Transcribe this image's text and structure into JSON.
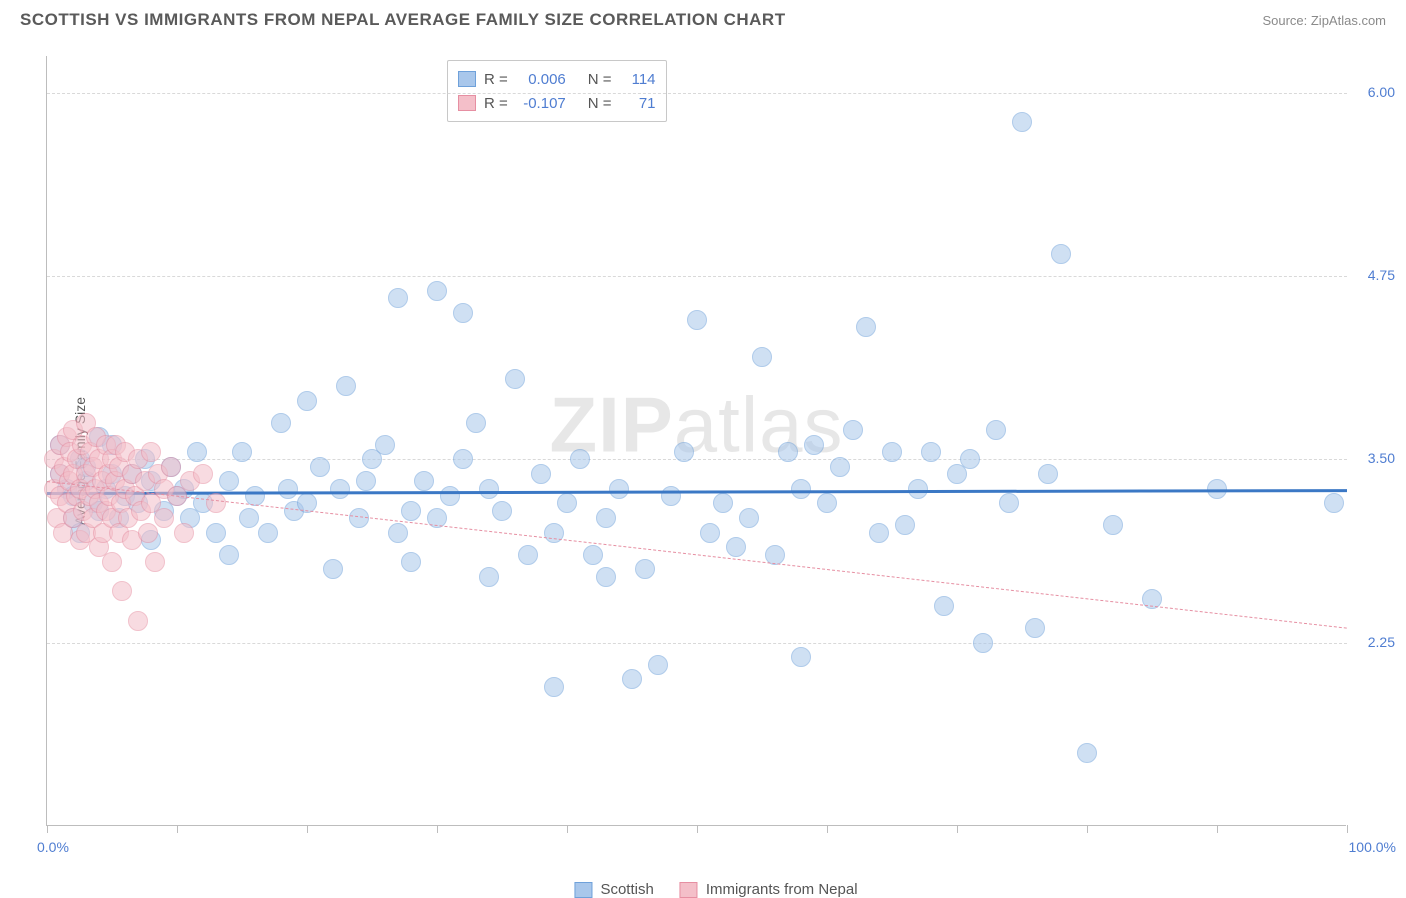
{
  "title": "SCOTTISH VS IMMIGRANTS FROM NEPAL AVERAGE FAMILY SIZE CORRELATION CHART",
  "source": "Source: ZipAtlas.com",
  "watermark_bold": "ZIP",
  "watermark_light": "atlas",
  "yaxis_title": "Average Family Size",
  "chart": {
    "type": "scatter",
    "background_color": "#ffffff",
    "grid_color": "#d9d9d9",
    "axis_color": "#bdbdbd",
    "xlim": [
      0,
      100
    ],
    "ylim": [
      1.0,
      6.25
    ],
    "xlabel_min": "0.0%",
    "xlabel_max": "100.0%",
    "yticks": [
      2.25,
      3.5,
      4.75,
      6.0
    ],
    "ytick_labels": [
      "2.25",
      "3.50",
      "4.75",
      "6.00"
    ],
    "xtick_positions": [
      0,
      10,
      20,
      30,
      40,
      50,
      60,
      70,
      80,
      90,
      100
    ],
    "marker_radius": 10,
    "marker_opacity": 0.55,
    "label_color": "#4f7dd1",
    "text_color": "#555555"
  },
  "series": [
    {
      "name": "Scottish",
      "fill": "#a9c7eb",
      "stroke": "#6fa1da",
      "reg_color": "#3b78c5",
      "reg_width": 3,
      "reg_dash": "solid",
      "R": "0.006",
      "N": "114",
      "reg_start_y": 3.28,
      "reg_end_y": 3.3,
      "reg_start_x": 0,
      "reg_end_x": 100,
      "points": [
        [
          1,
          3.4
        ],
        [
          1,
          3.6
        ],
        [
          1.5,
          3.3
        ],
        [
          2,
          3.1
        ],
        [
          2,
          3.25
        ],
        [
          2.5,
          3.5
        ],
        [
          2.5,
          3.0
        ],
        [
          3,
          3.35
        ],
        [
          3,
          3.45
        ],
        [
          3.5,
          3.2
        ],
        [
          4,
          3.65
        ],
        [
          4,
          3.15
        ],
        [
          4.5,
          3.3
        ],
        [
          5,
          3.4
        ],
        [
          5,
          3.6
        ],
        [
          5.5,
          3.1
        ],
        [
          6,
          3.25
        ],
        [
          6.5,
          3.4
        ],
        [
          7,
          3.2
        ],
        [
          7.5,
          3.5
        ],
        [
          8,
          2.95
        ],
        [
          8,
          3.35
        ],
        [
          9,
          3.15
        ],
        [
          9.5,
          3.45
        ],
        [
          10,
          3.25
        ],
        [
          10.5,
          3.3
        ],
        [
          11,
          3.1
        ],
        [
          11.5,
          3.55
        ],
        [
          12,
          3.2
        ],
        [
          13,
          3.0
        ],
        [
          14,
          2.85
        ],
        [
          14,
          3.35
        ],
        [
          15,
          3.55
        ],
        [
          15.5,
          3.1
        ],
        [
          16,
          3.25
        ],
        [
          17,
          3.0
        ],
        [
          18,
          3.75
        ],
        [
          18.5,
          3.3
        ],
        [
          19,
          3.15
        ],
        [
          20,
          3.9
        ],
        [
          20,
          3.2
        ],
        [
          21,
          3.45
        ],
        [
          22,
          2.75
        ],
        [
          22.5,
          3.3
        ],
        [
          23,
          4.0
        ],
        [
          24,
          3.1
        ],
        [
          24.5,
          3.35
        ],
        [
          25,
          3.5
        ],
        [
          26,
          3.6
        ],
        [
          27,
          3.0
        ],
        [
          27,
          4.6
        ],
        [
          28,
          3.15
        ],
        [
          28,
          2.8
        ],
        [
          29,
          3.35
        ],
        [
          30,
          4.65
        ],
        [
          30,
          3.1
        ],
        [
          31,
          3.25
        ],
        [
          32,
          3.5
        ],
        [
          32,
          4.5
        ],
        [
          33,
          3.75
        ],
        [
          34,
          2.7
        ],
        [
          34,
          3.3
        ],
        [
          35,
          3.15
        ],
        [
          36,
          4.05
        ],
        [
          37,
          2.85
        ],
        [
          38,
          3.4
        ],
        [
          39,
          3.0
        ],
        [
          39,
          1.95
        ],
        [
          40,
          3.2
        ],
        [
          41,
          3.5
        ],
        [
          42,
          2.85
        ],
        [
          43,
          2.7
        ],
        [
          43,
          3.1
        ],
        [
          44,
          3.3
        ],
        [
          45,
          2.0
        ],
        [
          46,
          2.75
        ],
        [
          47,
          2.1
        ],
        [
          48,
          3.25
        ],
        [
          49,
          3.55
        ],
        [
          50,
          4.45
        ],
        [
          51,
          3.0
        ],
        [
          52,
          3.2
        ],
        [
          53,
          2.9
        ],
        [
          54,
          3.1
        ],
        [
          55,
          4.2
        ],
        [
          56,
          2.85
        ],
        [
          57,
          3.55
        ],
        [
          58,
          2.15
        ],
        [
          58,
          3.3
        ],
        [
          59,
          3.6
        ],
        [
          60,
          3.2
        ],
        [
          61,
          3.45
        ],
        [
          62,
          3.7
        ],
        [
          63,
          4.4
        ],
        [
          64,
          3.0
        ],
        [
          65,
          3.55
        ],
        [
          66,
          3.05
        ],
        [
          67,
          3.3
        ],
        [
          68,
          3.55
        ],
        [
          69,
          2.5
        ],
        [
          70,
          3.4
        ],
        [
          71,
          3.5
        ],
        [
          72,
          2.25
        ],
        [
          73,
          3.7
        ],
        [
          74,
          3.2
        ],
        [
          75,
          5.8
        ],
        [
          76,
          2.35
        ],
        [
          77,
          3.4
        ],
        [
          78,
          4.9
        ],
        [
          80,
          1.5
        ],
        [
          82,
          3.05
        ],
        [
          85,
          2.55
        ],
        [
          90,
          3.3
        ],
        [
          99,
          3.2
        ]
      ]
    },
    {
      "name": "Immigrants from Nepal",
      "fill": "#f4bfc9",
      "stroke": "#e68fa2",
      "reg_color": "#e68fa2",
      "reg_width": 1.5,
      "reg_dash": "dashed",
      "R": "-0.107",
      "N": "71",
      "reg_start_y": 3.35,
      "reg_end_y": 2.35,
      "reg_start_x": 0,
      "reg_end_x": 100,
      "points": [
        [
          0.5,
          3.3
        ],
        [
          0.5,
          3.5
        ],
        [
          0.8,
          3.1
        ],
        [
          1,
          3.4
        ],
        [
          1,
          3.6
        ],
        [
          1,
          3.25
        ],
        [
          1.2,
          3.0
        ],
        [
          1.3,
          3.45
        ],
        [
          1.5,
          3.65
        ],
        [
          1.5,
          3.2
        ],
        [
          1.7,
          3.35
        ],
        [
          1.8,
          3.55
        ],
        [
          2,
          3.1
        ],
        [
          2,
          3.4
        ],
        [
          2,
          3.7
        ],
        [
          2.2,
          3.25
        ],
        [
          2.3,
          3.5
        ],
        [
          2.5,
          2.95
        ],
        [
          2.5,
          3.3
        ],
        [
          2.7,
          3.6
        ],
        [
          2.8,
          3.15
        ],
        [
          3,
          3.4
        ],
        [
          3,
          3.75
        ],
        [
          3,
          3.0
        ],
        [
          3.2,
          3.25
        ],
        [
          3.3,
          3.55
        ],
        [
          3.5,
          3.1
        ],
        [
          3.5,
          3.45
        ],
        [
          3.7,
          3.3
        ],
        [
          3.8,
          3.65
        ],
        [
          4,
          2.9
        ],
        [
          4,
          3.2
        ],
        [
          4,
          3.5
        ],
        [
          4.2,
          3.35
        ],
        [
          4.3,
          3.0
        ],
        [
          4.5,
          3.6
        ],
        [
          4.5,
          3.15
        ],
        [
          4.7,
          3.4
        ],
        [
          4.8,
          3.25
        ],
        [
          5,
          2.8
        ],
        [
          5,
          3.5
        ],
        [
          5,
          3.1
        ],
        [
          5.2,
          3.35
        ],
        [
          5.3,
          3.6
        ],
        [
          5.5,
          3.0
        ],
        [
          5.5,
          3.45
        ],
        [
          5.7,
          3.2
        ],
        [
          5.8,
          2.6
        ],
        [
          6,
          3.3
        ],
        [
          6,
          3.55
        ],
        [
          6.2,
          3.1
        ],
        [
          6.5,
          3.4
        ],
        [
          6.5,
          2.95
        ],
        [
          6.8,
          3.25
        ],
        [
          7,
          3.5
        ],
        [
          7,
          2.4
        ],
        [
          7.2,
          3.15
        ],
        [
          7.5,
          3.35
        ],
        [
          7.8,
          3.0
        ],
        [
          8,
          3.55
        ],
        [
          8,
          3.2
        ],
        [
          8.3,
          2.8
        ],
        [
          8.5,
          3.4
        ],
        [
          9,
          3.1
        ],
        [
          9,
          3.3
        ],
        [
          9.5,
          3.45
        ],
        [
          10,
          3.25
        ],
        [
          10.5,
          3.0
        ],
        [
          11,
          3.35
        ],
        [
          12,
          3.4
        ],
        [
          13,
          3.2
        ]
      ]
    }
  ],
  "stats_labels": {
    "R": "R =",
    "N": "N ="
  },
  "legend": {
    "series1": "Scottish",
    "series2": "Immigrants from Nepal"
  }
}
